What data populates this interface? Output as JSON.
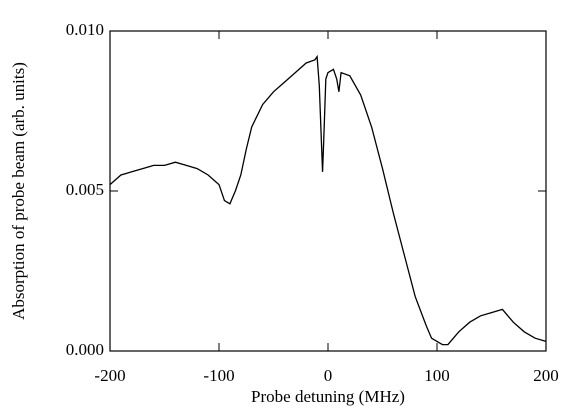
{
  "chart_data": {
    "type": "line",
    "xlabel": "Probe detuning (MHz)",
    "ylabel": "Absorption of probe beam (arb. units)",
    "x": [
      -200,
      -190,
      -180,
      -170,
      -160,
      -150,
      -140,
      -130,
      -120,
      -110,
      -100,
      -95,
      -90,
      -85,
      -80,
      -75,
      -70,
      -60,
      -50,
      -40,
      -30,
      -20,
      -12,
      -10,
      -8,
      -6,
      -5,
      -4,
      -2,
      0,
      5,
      8,
      10,
      12,
      20,
      30,
      40,
      50,
      60,
      70,
      80,
      90,
      95,
      100,
      105,
      110,
      120,
      130,
      140,
      150,
      160,
      170,
      180,
      190,
      200
    ],
    "series": [
      {
        "name": null,
        "color": "#000000",
        "values": [
          0.0052,
          0.0055,
          0.0056,
          0.0057,
          0.0058,
          0.0058,
          0.0059,
          0.0058,
          0.0057,
          0.0055,
          0.0052,
          0.0047,
          0.0046,
          0.005,
          0.0055,
          0.0063,
          0.007,
          0.0077,
          0.0081,
          0.0084,
          0.0087,
          0.009,
          0.0091,
          0.0092,
          0.0083,
          0.0065,
          0.0056,
          0.0065,
          0.0085,
          0.0087,
          0.0088,
          0.0085,
          0.0081,
          0.0087,
          0.0086,
          0.008,
          0.007,
          0.0057,
          0.0043,
          0.003,
          0.0017,
          0.0008,
          0.0004,
          0.0003,
          0.0002,
          0.0002,
          0.0006,
          0.0009,
          0.0011,
          0.0012,
          0.0013,
          0.0009,
          0.0006,
          0.0004,
          0.0003
        ]
      }
    ],
    "xlim": [
      -200,
      200
    ],
    "xticks": [
      -200,
      -100,
      0,
      100,
      200
    ],
    "ylim": [
      0,
      0.01
    ],
    "yticks": [
      {
        "value": 0,
        "label": "0.000"
      },
      {
        "value": 0.005,
        "label": "0.005"
      },
      {
        "value": 0.01,
        "label": "0.010"
      }
    ]
  }
}
